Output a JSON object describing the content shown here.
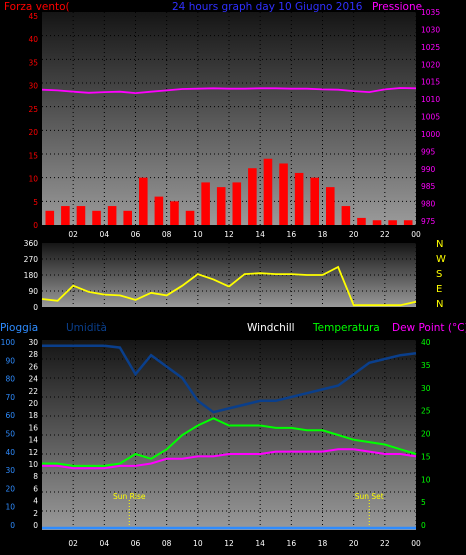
{
  "colors": {
    "wind": "#ff0000",
    "gust_green": "#00ff00",
    "pressure": "#ff00ff",
    "title": "#3030ff",
    "direction": "#ffff00",
    "humidity": "#0a3f8c",
    "rain_blue": "#2e8cff",
    "temperature": "#00ff00",
    "dewpoint": "#ff00ff",
    "windchill": "#ffffff",
    "right_axis_top": "#ff00ff",
    "right_axis_bottom": "#00ff00",
    "direction_axis": "#ffff00"
  },
  "panel1": {
    "left_title": "Forza vento(",
    "center_title": "24 hours graph day  10 Giugno 2016",
    "right_title": "Pressione",
    "left_ticks": [
      "45",
      "40",
      "35",
      "30",
      "25",
      "20",
      "15",
      "10",
      "5",
      "0"
    ],
    "right_ticks": [
      "1035",
      "1030",
      "1025",
      "1020",
      "1015",
      "1010",
      "1005",
      "1000",
      "995",
      "990",
      "985",
      "980",
      "975"
    ]
  },
  "panel2": {
    "left_ticks": [
      "360",
      "270",
      "180",
      "90",
      "0"
    ],
    "right_labels": [
      "N",
      "W",
      "S",
      "E",
      "N"
    ]
  },
  "panel3": {
    "h_rain": "Pioggia",
    "h_hum": "Umidità",
    "h_wc": "Windchill",
    "h_temp": "Temperatura",
    "h_dew": "Dew Point (°C)",
    "rain_ticks": [
      "100",
      "90",
      "80",
      "70",
      "60",
      "50",
      "40",
      "30",
      "20",
      "10",
      "0"
    ],
    "hum_ticks": [
      "30",
      "28",
      "26",
      "24",
      "22",
      "20",
      "18",
      "16",
      "14",
      "12",
      "10",
      "8",
      "6",
      "4",
      "2",
      "0"
    ],
    "right_ticks": [
      "40",
      "35",
      "30",
      "25",
      "20",
      "15",
      "10",
      "5",
      "0"
    ],
    "sunrise_label": "Sun Rise",
    "sunset_label": "Sun Set"
  },
  "x_ticks": [
    "02",
    "04",
    "06",
    "08",
    "10",
    "12",
    "14",
    "16",
    "18",
    "20",
    "22",
    "00"
  ],
  "chart_data": [
    {
      "type": "line",
      "title": "24 hours graph day  10 Giugno 2016",
      "x": [
        "00",
        "01",
        "02",
        "03",
        "04",
        "05",
        "06",
        "07",
        "08",
        "09",
        "10",
        "11",
        "12",
        "13",
        "14",
        "15",
        "16",
        "17",
        "18",
        "19",
        "20",
        "21",
        "22",
        "23",
        "24"
      ],
      "series": [
        {
          "name": "Forza vento(",
          "axis": "left",
          "ylim": [
            0,
            45
          ],
          "type": "bar",
          "values": [
            3,
            4,
            4,
            3,
            4,
            3,
            10,
            6,
            5,
            3,
            9,
            8,
            9,
            12,
            14,
            13,
            11,
            10,
            8,
            4,
            1.5,
            1,
            1,
            1,
            1
          ]
        },
        {
          "name": "Pressione",
          "axis": "right",
          "ylim": [
            972.5,
            1035
          ],
          "values": [
            1012.2,
            1012,
            1011.6,
            1011.3,
            1011.5,
            1011.6,
            1011.2,
            1011.6,
            1012,
            1012.4,
            1012.5,
            1012.6,
            1012.5,
            1012.5,
            1012.6,
            1012.6,
            1012.5,
            1012.5,
            1012.3,
            1012.2,
            1011.8,
            1011.5,
            1012.3,
            1012.7,
            1012.6
          ]
        }
      ]
    },
    {
      "type": "line",
      "ylim": [
        0,
        360
      ],
      "x": [
        "00",
        "01",
        "02",
        "03",
        "04",
        "05",
        "06",
        "07",
        "08",
        "09",
        "10",
        "11",
        "12",
        "13",
        "14",
        "15",
        "16",
        "17",
        "18",
        "19",
        "20",
        "21",
        "22",
        "23",
        "24"
      ],
      "series": [
        {
          "values": [
            45,
            35,
            120,
            85,
            70,
            65,
            40,
            80,
            65,
            120,
            185,
            155,
            115,
            185,
            190,
            185,
            185,
            180,
            180,
            225,
            10,
            10,
            10,
            10,
            30
          ]
        }
      ]
    },
    {
      "type": "line",
      "x": [
        "00",
        "01",
        "02",
        "03",
        "04",
        "05",
        "06",
        "07",
        "08",
        "09",
        "10",
        "11",
        "12",
        "13",
        "14",
        "15",
        "16",
        "17",
        "18",
        "19",
        "20",
        "21",
        "22",
        "23",
        "24"
      ],
      "series": [
        {
          "name": "Umidità",
          "axis": "left",
          "ylim": [
            0,
            100
          ],
          "values": [
            97,
            97,
            97,
            97,
            97,
            96,
            82,
            92,
            86,
            80,
            68,
            62,
            64,
            66,
            68,
            68,
            70,
            72,
            74,
            76,
            82,
            88,
            90,
            92,
            93
          ]
        },
        {
          "name": "Temperatura",
          "axis": "right",
          "ylim": [
            0,
            40
          ],
          "values": [
            14,
            14,
            13.5,
            13.5,
            13.5,
            14,
            16,
            15,
            17,
            20,
            22,
            23.5,
            22,
            22,
            22,
            21.5,
            21.5,
            21,
            21,
            20,
            19,
            18.5,
            18,
            17,
            16
          ]
        },
        {
          "name": "Dew Point (°C)",
          "axis": "right",
          "ylim": [
            0,
            40
          ],
          "values": [
            13.5,
            13.5,
            13,
            13,
            13,
            13.5,
            13.5,
            14,
            15,
            15,
            15.5,
            15.5,
            16,
            16,
            16,
            16.5,
            16.5,
            16.5,
            16.5,
            17,
            17,
            16.5,
            16,
            16,
            15.5
          ]
        }
      ]
    }
  ]
}
